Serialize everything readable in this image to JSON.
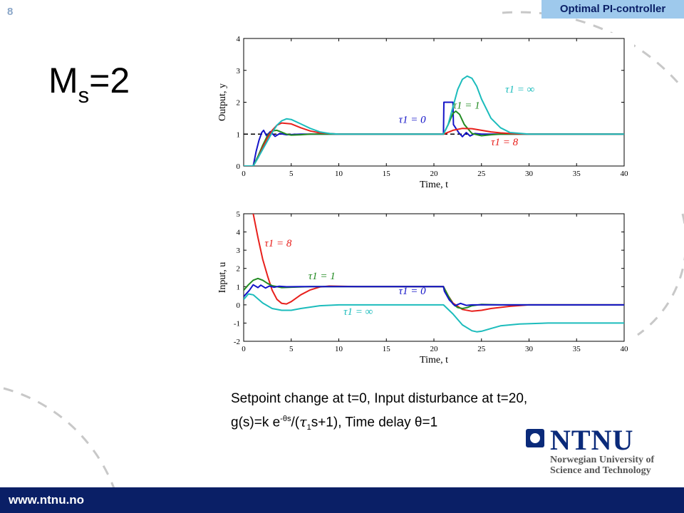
{
  "slide": {
    "number": "8",
    "section_tag": "Optimal PI-controller",
    "heading_main": "M",
    "heading_sub": "s",
    "heading_tail": "=2"
  },
  "caption": {
    "line1": "Setpoint change at t=0, Input disturbance at t=20,",
    "line2_a": "g(s)=k e",
    "line2_sup": "-θs",
    "line2_b": "/(",
    "line2_tau": "τ",
    "line2_sub": "1",
    "line2_c": "s+1), Time delay θ=1"
  },
  "logo": {
    "name": "NTNU",
    "line1": "Norwegian University of",
    "line2": "Science and Technology"
  },
  "footer": {
    "url": "www.ntnu.no"
  },
  "colors": {
    "tau0": "#1414c8",
    "tau1": "#228b22",
    "tau8": "#e8201c",
    "tauinf": "#1cbcbc",
    "footer": "#0a1f66",
    "tag": "#9ec9ec"
  },
  "chart_data": [
    {
      "type": "line",
      "id": "output",
      "xlabel": "Time, t",
      "ylabel": "Output, y",
      "xlim": [
        0,
        40
      ],
      "ylim": [
        0,
        4
      ],
      "xticks": [
        0,
        5,
        10,
        15,
        20,
        25,
        30,
        35,
        40
      ],
      "yticks": [
        0,
        1,
        2,
        3,
        4
      ],
      "setpoint": {
        "value": 1,
        "style": "dashed",
        "x_range": [
          0,
          25
        ]
      },
      "series": [
        {
          "name": "τ1 = 0",
          "color": "#1414c8",
          "x": [
            0,
            1,
            1.3,
            1.6,
            1.9,
            2.1,
            2.4,
            2.8,
            3.3,
            3.8,
            4.5,
            6,
            10,
            21,
            21.05,
            22,
            22.05,
            22.6,
            23.0,
            23.4,
            23.8,
            24.3,
            25,
            30,
            40
          ],
          "y": [
            0,
            0,
            0.45,
            0.8,
            1.05,
            1.12,
            0.95,
            1.08,
            0.93,
            1.02,
            0.98,
            1.0,
            1.0,
            1.0,
            2.0,
            2.0,
            1.3,
            1.05,
            0.92,
            1.05,
            0.94,
            1.02,
            1.0,
            1.0,
            1.0
          ]
        },
        {
          "name": "τ1 = 1",
          "color": "#228b22",
          "x": [
            0,
            1,
            1.5,
            2,
            2.5,
            3,
            3.5,
            4,
            4.5,
            5,
            6,
            7,
            8,
            10,
            21,
            21.5,
            22,
            22.3,
            22.7,
            23.2,
            24,
            25,
            26,
            27,
            40
          ],
          "y": [
            0,
            0,
            0.3,
            0.65,
            0.95,
            1.1,
            1.12,
            1.06,
            1.0,
            0.97,
            0.98,
            1.0,
            1.0,
            1.0,
            1.0,
            1.3,
            1.65,
            1.72,
            1.62,
            1.3,
            1.02,
            0.95,
            0.98,
            1.0,
            1.0
          ]
        },
        {
          "name": "τ1 = 8",
          "color": "#e8201c",
          "x": [
            0,
            1,
            1.5,
            2,
            2.5,
            3,
            3.5,
            4,
            5,
            6,
            7,
            8,
            10,
            12,
            21,
            22,
            23,
            24,
            25,
            26,
            27,
            28,
            30,
            40
          ],
          "y": [
            0,
            0,
            0.25,
            0.58,
            0.88,
            1.12,
            1.28,
            1.35,
            1.32,
            1.2,
            1.1,
            1.04,
            1.0,
            1.0,
            1.0,
            1.12,
            1.18,
            1.17,
            1.12,
            1.07,
            1.04,
            1.02,
            1.0,
            1.0
          ]
        },
        {
          "name": "τ1 = ∞",
          "color": "#1cbcbc",
          "x": [
            0,
            1,
            1.5,
            2,
            3,
            3.5,
            4,
            4.5,
            5,
            6,
            7,
            8,
            9,
            10,
            12,
            21,
            21.5,
            22,
            22.5,
            23,
            23.5,
            24,
            24.5,
            25,
            26,
            27,
            28,
            30,
            32,
            40
          ],
          "y": [
            0,
            0,
            0.25,
            0.52,
            1.05,
            1.28,
            1.42,
            1.48,
            1.46,
            1.32,
            1.18,
            1.07,
            1.02,
            1.0,
            1.0,
            1.0,
            1.3,
            1.85,
            2.4,
            2.72,
            2.82,
            2.75,
            2.5,
            2.1,
            1.5,
            1.2,
            1.05,
            1.0,
            1.0,
            1.0
          ]
        }
      ],
      "annotations": [
        {
          "text": "τ1 = ∞",
          "x": 27.5,
          "y": 2.3,
          "color": "#1cbcbc"
        },
        {
          "text": "τ1 = 1",
          "x": 22,
          "y": 1.8,
          "color": "#228b22"
        },
        {
          "text": "τ1 = 0",
          "x": 16.3,
          "y": 1.35,
          "color": "#1414c8"
        },
        {
          "text": "τ1 = 8",
          "x": 26,
          "y": 0.65,
          "color": "#e8201c"
        }
      ]
    },
    {
      "type": "line",
      "id": "input",
      "xlabel": "Time, t",
      "ylabel": "Input, u",
      "xlim": [
        0,
        40
      ],
      "ylim": [
        -2,
        5
      ],
      "xticks": [
        0,
        5,
        10,
        15,
        20,
        25,
        30,
        35,
        40
      ],
      "yticks": [
        -2,
        -1,
        0,
        1,
        2,
        3,
        4,
        5
      ],
      "series": [
        {
          "name": "τ1 = 8",
          "color": "#e8201c",
          "x": [
            1,
            1.5,
            2,
            2.5,
            3,
            3.5,
            4,
            4.5,
            5,
            6,
            7,
            8,
            9,
            10,
            12,
            21,
            21.5,
            22,
            23,
            24,
            25,
            26,
            28,
            30,
            40
          ],
          "y": [
            5,
            3.7,
            2.5,
            1.6,
            0.8,
            0.3,
            0.08,
            0.05,
            0.18,
            0.55,
            0.82,
            0.98,
            1.03,
            1.02,
            1.0,
            1.0,
            0.5,
            0.1,
            -0.25,
            -0.35,
            -0.3,
            -0.2,
            -0.08,
            0.0,
            0.0
          ]
        },
        {
          "name": "τ1 = 1",
          "color": "#228b22",
          "x": [
            0,
            0.5,
            1,
            1.5,
            2,
            2.5,
            3,
            4,
            5,
            7,
            10,
            21,
            21.5,
            22,
            22.5,
            23,
            23.5,
            24,
            25,
            27,
            40
          ],
          "y": [
            0.8,
            1.1,
            1.35,
            1.45,
            1.35,
            1.18,
            1.05,
            0.95,
            0.97,
            1.0,
            1.0,
            1.0,
            0.5,
            0.05,
            -0.15,
            -0.2,
            -0.15,
            -0.05,
            0.02,
            0.0,
            0.0
          ]
        },
        {
          "name": "τ1 = 0",
          "color": "#1414c8",
          "x": [
            0,
            0.6,
            1,
            1.5,
            1.8,
            2.3,
            2.7,
            3.2,
            3.7,
            4.5,
            6,
            10,
            21,
            21.1,
            21.6,
            22.2,
            22.8,
            23.4,
            24,
            40
          ],
          "y": [
            0.45,
            0.8,
            1.1,
            0.95,
            1.08,
            0.92,
            1.03,
            0.97,
            1.02,
            0.99,
            1.0,
            1.0,
            1.0,
            0.75,
            0.28,
            -0.05,
            0.08,
            -0.03,
            0.0,
            0.0
          ]
        },
        {
          "name": "τ1 = ∞",
          "color": "#1cbcbc",
          "x": [
            0,
            0.5,
            1,
            2,
            3,
            4,
            5,
            6,
            8,
            10,
            12,
            21,
            22,
            23,
            24,
            24.5,
            25,
            26,
            27,
            29,
            32,
            35,
            40
          ],
          "y": [
            0.3,
            0.6,
            0.55,
            0.1,
            -0.2,
            -0.3,
            -0.3,
            -0.2,
            -0.05,
            0.0,
            0.0,
            0.0,
            -0.5,
            -1.1,
            -1.42,
            -1.48,
            -1.45,
            -1.3,
            -1.15,
            -1.05,
            -1.0,
            -1.0,
            -1.0
          ]
        }
      ],
      "annotations": [
        {
          "text": "τ1 = 8",
          "x": 2.2,
          "y": 3.2,
          "color": "#e8201c"
        },
        {
          "text": "τ1 = 1",
          "x": 6.8,
          "y": 1.4,
          "color": "#228b22"
        },
        {
          "text": "τ1 = 0",
          "x": 16.3,
          "y": 0.58,
          "color": "#1414c8"
        },
        {
          "text": "τ1 = ∞",
          "x": 10.5,
          "y": -0.55,
          "color": "#1cbcbc"
        }
      ]
    }
  ]
}
